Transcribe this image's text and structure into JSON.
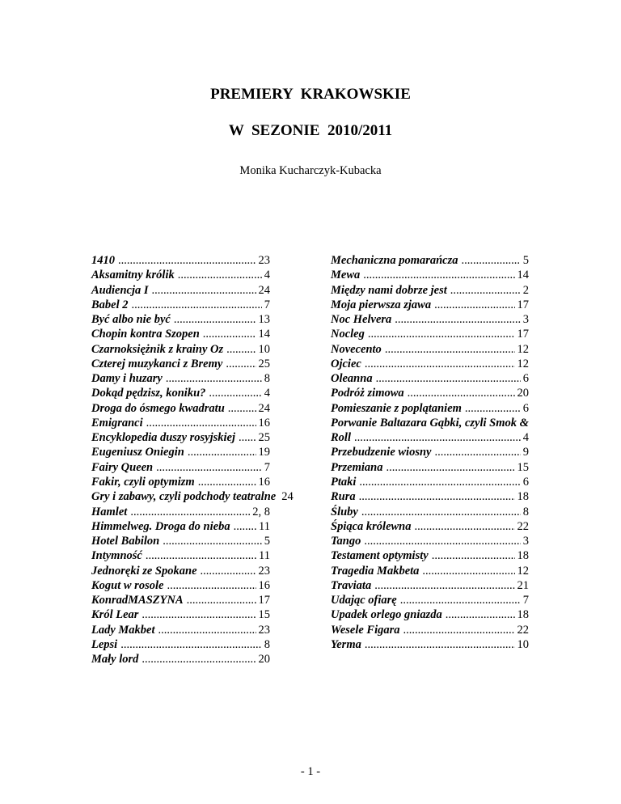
{
  "header": {
    "title_line1": "PREMIERY  KRAKOWSKIE",
    "title_line2": "W  SEZONIE  2010/2011",
    "author": "Monika Kucharczyk-Kubacka"
  },
  "index_left": [
    {
      "title": "1410",
      "page": "23"
    },
    {
      "title": "Aksamitny królik",
      "page": "4"
    },
    {
      "title": "Audiencja I",
      "page": "24"
    },
    {
      "title": "Babel 2",
      "page": "7"
    },
    {
      "title": "Być albo nie być",
      "page": "13"
    },
    {
      "title": "Chopin kontra Szopen",
      "page": "14"
    },
    {
      "title": "Czarnoksiężnik z krainy Oz",
      "page": "10"
    },
    {
      "title": "Czterej muzykanci z Bremy",
      "page": "25"
    },
    {
      "title": "Damy i huzary",
      "page": "8"
    },
    {
      "title": "Dokąd pędzisz, koniku?",
      "page": "4"
    },
    {
      "title": "Droga do ósmego kwadratu",
      "page": "24"
    },
    {
      "title": "Emigranci",
      "page": "16"
    },
    {
      "title": "Encyklopedia duszy rosyjskiej",
      "page": "25"
    },
    {
      "title": "Eugeniusz Oniegin",
      "page": "19"
    },
    {
      "title": "Fairy Queen",
      "page": "7"
    },
    {
      "title": "Fakir, czyli optymizm",
      "page": "16"
    },
    {
      "title": "Gry i zabawy, czyli podchody teatralne",
      "page": "24"
    },
    {
      "title": "Hamlet",
      "page": "2, 8"
    },
    {
      "title": "Himmelweg. Droga do nieba",
      "page": "11"
    },
    {
      "title": "Hotel Babilon",
      "page": "5"
    },
    {
      "title": "Intymność",
      "page": "11"
    },
    {
      "title": "Jednoręki ze Spokane",
      "page": "23"
    },
    {
      "title": "Kogut w rosole",
      "page": "16"
    },
    {
      "title": "KonradMASZYNA",
      "page": "17"
    },
    {
      "title": "Król Lear",
      "page": "15"
    },
    {
      "title": "Lady Makbet",
      "page": "23"
    },
    {
      "title": "Lepsi",
      "page": "8"
    },
    {
      "title": "Mały lord",
      "page": "20"
    }
  ],
  "index_right": [
    {
      "title": "Mechaniczna pomarańcza",
      "page": "5"
    },
    {
      "title": "Mewa",
      "page": "14"
    },
    {
      "title": "Między nami dobrze jest",
      "page": "2"
    },
    {
      "title": "Moja pierwsza zjawa",
      "page": "17"
    },
    {
      "title": "Noc Helvera",
      "page": "3"
    },
    {
      "title": "Nocleg",
      "page": "17"
    },
    {
      "title": "Novecento",
      "page": "12"
    },
    {
      "title": "Ojciec",
      "page": "12"
    },
    {
      "title": "Oleanna",
      "page": "6"
    },
    {
      "title": "Podróż zimowa",
      "page": "20"
    },
    {
      "title": "Pomieszanie z poplątaniem",
      "page": "6"
    },
    {
      "title_lines": [
        "Porwanie Baltazara Gąbki, czyli Smok &",
        "Roll"
      ],
      "page": "4"
    },
    {
      "title": "Przebudzenie wiosny",
      "page": "9"
    },
    {
      "title": "Przemiana",
      "page": "15"
    },
    {
      "title": "Ptaki",
      "page": "6"
    },
    {
      "title": "Rura",
      "page": "18"
    },
    {
      "title": "Śluby",
      "page": "8"
    },
    {
      "title": "Śpiąca królewna",
      "page": "22"
    },
    {
      "title": "Tango",
      "page": "3"
    },
    {
      "title": "Testament optymisty",
      "page": "18"
    },
    {
      "title": "Tragedia Makbeta",
      "page": "12"
    },
    {
      "title": "Traviata",
      "page": "21"
    },
    {
      "title": "Udając ofiarę",
      "page": "7"
    },
    {
      "title": "Upadek orlego gniazda",
      "page": "18"
    },
    {
      "title": "Wesele Figara",
      "page": "22"
    },
    {
      "title": "Yerma",
      "page": "10"
    }
  ],
  "footer": {
    "page_number": "- 1 -"
  }
}
